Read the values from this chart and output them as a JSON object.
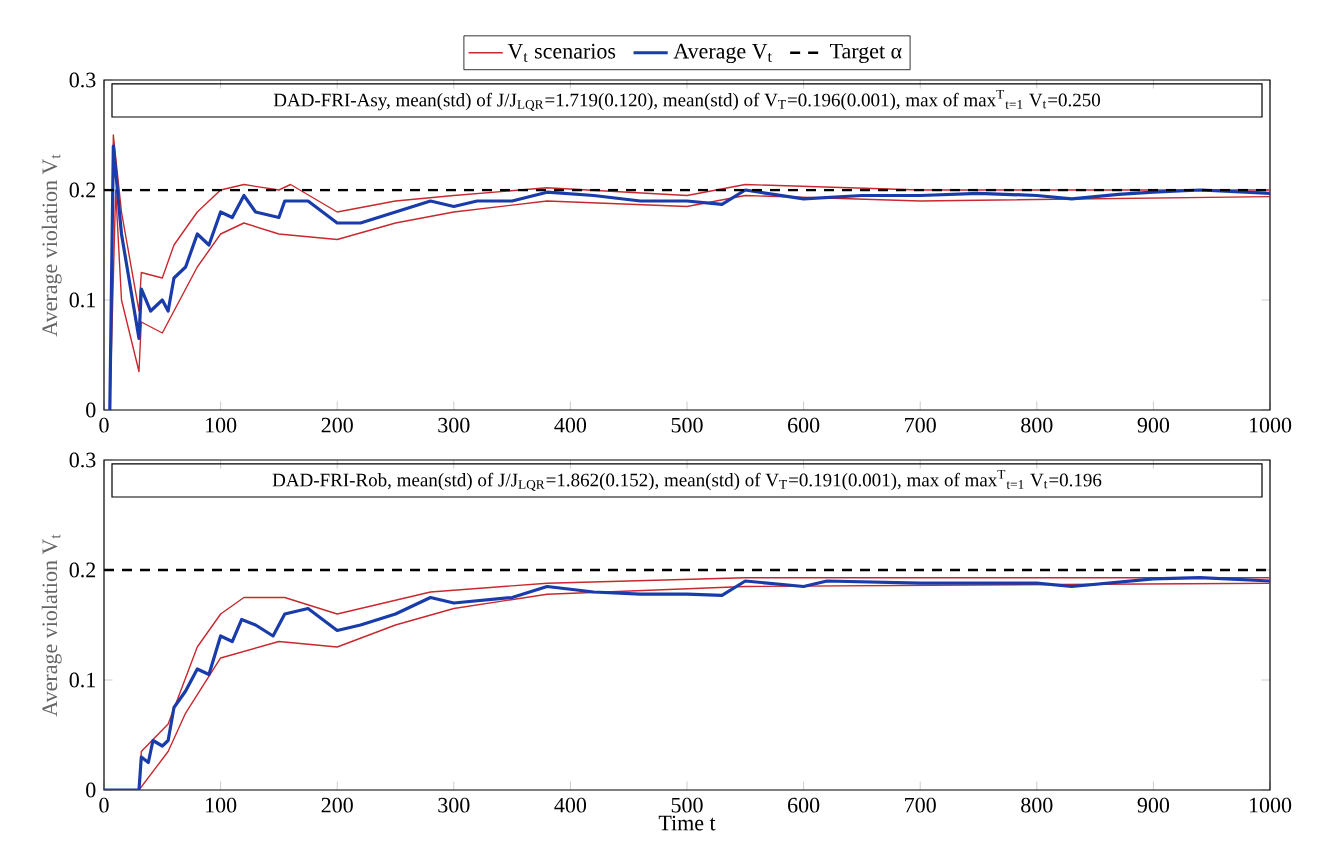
{
  "chart_data": [
    {
      "type": "line",
      "ylabel": "Average violation V$_{t}$",
      "xlim": [
        0,
        1000
      ],
      "ylim": [
        0,
        0.3
      ],
      "xticks": [
        0,
        100,
        200,
        300,
        400,
        500,
        600,
        700,
        800,
        900,
        1000
      ],
      "yticks": [
        0,
        0.1,
        0.2,
        0.3
      ],
      "legend": "top",
      "grid": false,
      "annotations": [
        "DAD-FRI-Asy, mean(std) of J/J$_{LQR}$=1.719(0.120), mean(std) of V$_{T}$=0.196(0.001), max of max$^{T}$$_{t=1}$ V$_{t}$=0.250"
      ],
      "series": [
        {
          "name": "V$_{t}$ scenarios",
          "color": "#c8282e",
          "line_style": "solid",
          "x": [
            5,
            8,
            15,
            30,
            32,
            50,
            60,
            80,
            100,
            120,
            150,
            160,
            200,
            250,
            300,
            380,
            500,
            550,
            700,
            1000
          ],
          "values": [
            0,
            0.25,
            0.18,
            0.09,
            0.125,
            0.12,
            0.15,
            0.18,
            0.2,
            0.205,
            0.2,
            0.205,
            0.18,
            0.19,
            0.195,
            0.202,
            0.195,
            0.205,
            0.2,
            0.2
          ]
        },
        {
          "color": "#c8282e",
          "line_style": "solid",
          "x": [
            5,
            10,
            15,
            30,
            32,
            50,
            60,
            80,
            100,
            120,
            150,
            200,
            250,
            300,
            380,
            500,
            550,
            700,
            1000
          ],
          "values": [
            0,
            0.2,
            0.1,
            0.035,
            0.08,
            0.07,
            0.09,
            0.13,
            0.16,
            0.17,
            0.16,
            0.155,
            0.17,
            0.18,
            0.19,
            0.185,
            0.195,
            0.19,
            0.194
          ]
        },
        {
          "name": "Average V$_{t}$",
          "color": "#1a3caa",
          "line_style": "solid",
          "x": [
            5,
            8,
            15,
            30,
            32,
            40,
            50,
            55,
            60,
            70,
            80,
            90,
            100,
            110,
            120,
            130,
            150,
            155,
            175,
            200,
            220,
            250,
            280,
            300,
            320,
            350,
            380,
            420,
            460,
            500,
            530,
            550,
            600,
            650,
            700,
            750,
            800,
            830,
            870,
            900,
            940,
            1000
          ],
          "values": [
            0,
            0.24,
            0.16,
            0.065,
            0.11,
            0.09,
            0.1,
            0.09,
            0.12,
            0.13,
            0.16,
            0.15,
            0.18,
            0.175,
            0.195,
            0.18,
            0.175,
            0.19,
            0.19,
            0.17,
            0.17,
            0.18,
            0.19,
            0.185,
            0.19,
            0.19,
            0.198,
            0.195,
            0.19,
            0.19,
            0.187,
            0.2,
            0.192,
            0.195,
            0.195,
            0.197,
            0.195,
            0.192,
            0.196,
            0.198,
            0.2,
            0.197
          ]
        },
        {
          "name": "Target α",
          "color": "#000000",
          "line_style": "dashed",
          "x": [
            0,
            1000
          ],
          "values": [
            0.2,
            0.2
          ]
        }
      ]
    },
    {
      "type": "line",
      "xlabel": "Time t",
      "ylabel": "Average violation V$_{t}$",
      "xlim": [
        0,
        1000
      ],
      "ylim": [
        0,
        0.3
      ],
      "xticks": [
        0,
        100,
        200,
        300,
        400,
        500,
        600,
        700,
        800,
        900,
        1000
      ],
      "yticks": [
        0,
        0.1,
        0.2,
        0.3
      ],
      "grid": false,
      "annotations": [
        "DAD-FRI-Rob, mean(std) of J/J$_{LQR}$=1.862(0.152), mean(std) of V$_{T}$=0.191(0.001), max of max$^{T}$$_{t=1}$ V$_{t}$=0.196"
      ],
      "series": [
        {
          "color": "#c8282e",
          "line_style": "solid",
          "x": [
            0,
            30,
            32,
            55,
            80,
            100,
            120,
            155,
            200,
            280,
            380,
            550,
            1000
          ],
          "values": [
            0,
            0,
            0.035,
            0.06,
            0.13,
            0.16,
            0.175,
            0.175,
            0.16,
            0.18,
            0.188,
            0.193,
            0.193
          ]
        },
        {
          "color": "#c8282e",
          "line_style": "solid",
          "x": [
            0,
            30,
            55,
            70,
            100,
            150,
            200,
            250,
            300,
            380,
            550,
            1000
          ],
          "values": [
            0,
            0,
            0.035,
            0.07,
            0.12,
            0.135,
            0.13,
            0.15,
            0.165,
            0.178,
            0.185,
            0.188
          ]
        },
        {
          "color": "#1a3caa",
          "line_style": "solid",
          "x": [
            0,
            30,
            32,
            38,
            42,
            50,
            55,
            60,
            70,
            80,
            90,
            100,
            110,
            118,
            130,
            145,
            155,
            175,
            200,
            220,
            250,
            280,
            300,
            350,
            380,
            420,
            460,
            500,
            530,
            550,
            600,
            620,
            700,
            800,
            830,
            900,
            940,
            1000
          ],
          "values": [
            0,
            0,
            0.03,
            0.025,
            0.045,
            0.04,
            0.045,
            0.075,
            0.09,
            0.11,
            0.105,
            0.14,
            0.135,
            0.155,
            0.15,
            0.14,
            0.16,
            0.165,
            0.145,
            0.15,
            0.16,
            0.175,
            0.17,
            0.175,
            0.185,
            0.18,
            0.178,
            0.178,
            0.177,
            0.19,
            0.185,
            0.19,
            0.188,
            0.188,
            0.185,
            0.192,
            0.193,
            0.19
          ]
        },
        {
          "color": "#000000",
          "line_style": "dashed",
          "x": [
            0,
            1000
          ],
          "values": [
            0.2,
            0.2
          ]
        }
      ]
    }
  ]
}
